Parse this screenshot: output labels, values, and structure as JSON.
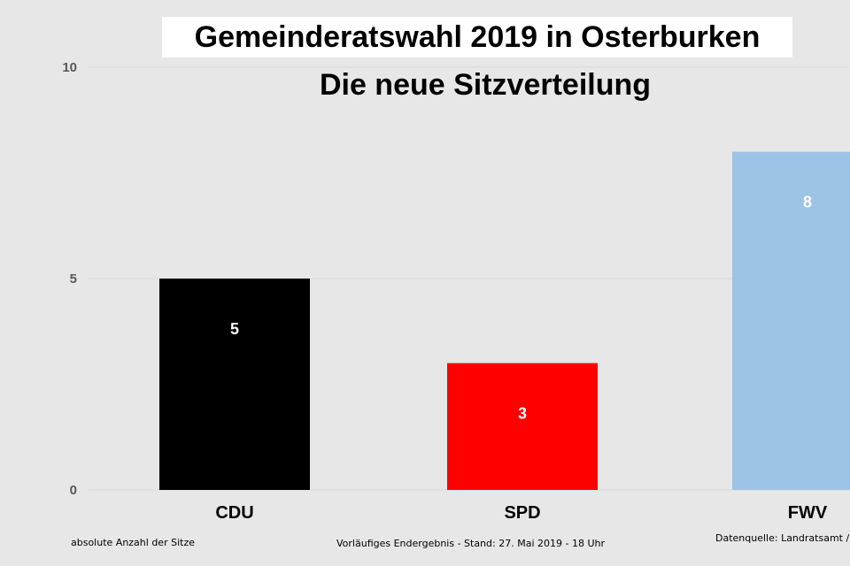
{
  "chart_data": {
    "type": "bar",
    "title": "Gemeinderatswahl 2019 in Osterburken",
    "subtitle": "Die neue Sitzverteilung",
    "categories": [
      "CDU",
      "SPD",
      "FWV"
    ],
    "values": [
      5,
      3,
      8
    ],
    "colors": [
      "#000000",
      "#ff0000",
      "#9dc3e6"
    ],
    "yticks": [
      0,
      5,
      10
    ],
    "ylim": [
      0,
      10
    ],
    "grid": true,
    "data_labels": true
  },
  "footer": {
    "left": "absolute Anzahl der Sitze",
    "center": "Vorläufiges Endergebnis - Stand: 27. Mai 2019  - 18 Uhr",
    "right": "Datenquelle: Landratsamt /"
  },
  "colors": {
    "background": "#e7e7e7",
    "gridline": "#d9d9d9",
    "axis_text": "#595959"
  }
}
